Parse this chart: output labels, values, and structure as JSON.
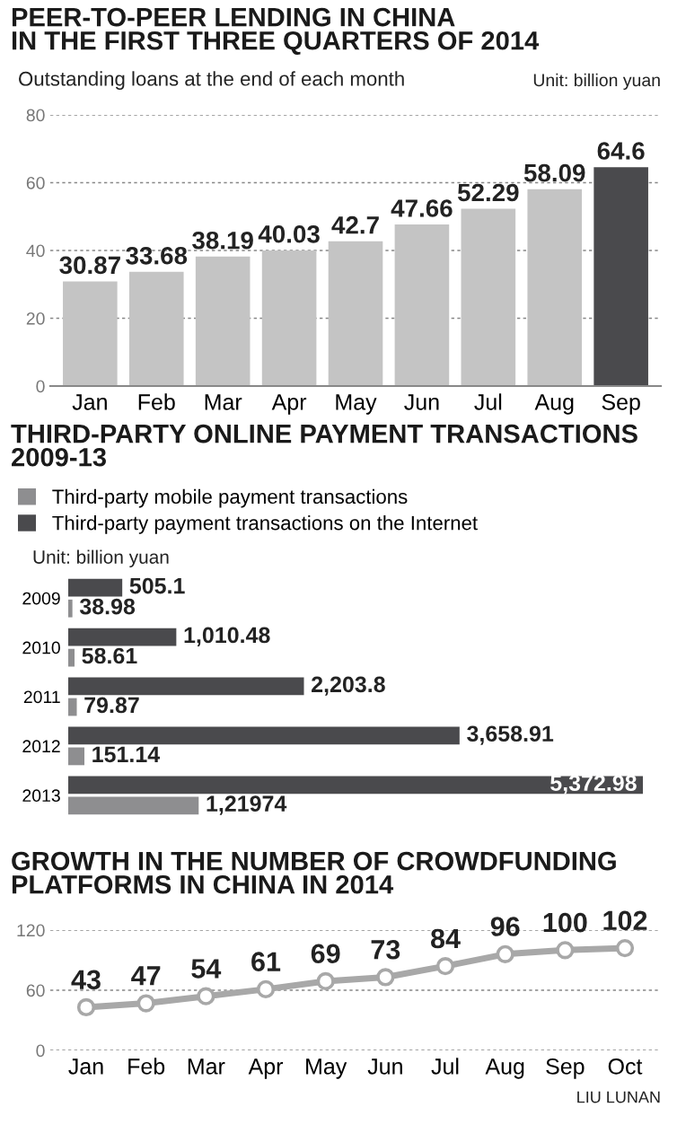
{
  "chart_data": [
    {
      "type": "bar",
      "title": "PEER-TO-PEER LENDING IN CHINA\nIN THE FIRST THREE QUARTERS OF 2014",
      "subtitle": "Outstanding loans at the end of each month",
      "annotations": [
        "Unit: billion yuan"
      ],
      "categories": [
        "Jan",
        "Feb",
        "Mar",
        "Apr",
        "May",
        "Jun",
        "Jul",
        "Aug",
        "Sep"
      ],
      "values": [
        30.87,
        33.68,
        38.19,
        40.03,
        42.7,
        47.66,
        52.29,
        58.09,
        64.6
      ],
      "colors": [
        "#c4c4c4",
        "#c4c4c4",
        "#c4c4c4",
        "#c4c4c4",
        "#c4c4c4",
        "#c4c4c4",
        "#c4c4c4",
        "#c4c4c4",
        "#4a4a4d"
      ],
      "ylim": [
        0,
        80
      ],
      "yticks": [
        0,
        20,
        40,
        60,
        80
      ],
      "grid": "y",
      "data_labels": true
    },
    {
      "type": "bar",
      "orientation": "horizontal",
      "title": "THIRD-PARTY ONLINE PAYMENT TRANSACTIONS\n2009-13",
      "annotations": [
        "Unit: billion yuan"
      ],
      "categories": [
        "2009",
        "2010",
        "2011",
        "2012",
        "2013"
      ],
      "legend": "top left",
      "series": [
        {
          "name": "Third-party mobile payment transactions",
          "color": "#8e8e90",
          "values": [
            38.98,
            58.61,
            79.87,
            151.14,
            1219.74
          ],
          "value_labels": [
            "38.98",
            "58.61",
            "79.87",
            "151.14",
            "1,21974"
          ]
        },
        {
          "name": "Third-party payment transactions on the Internet",
          "color": "#4a4a4d",
          "values": [
            505.1,
            1010.48,
            2203.8,
            3658.91,
            5372.98
          ],
          "value_labels": [
            "505.1",
            "1,010.48",
            "2,203.8",
            "3,658.91",
            "5,372.98"
          ]
        }
      ]
    },
    {
      "type": "line",
      "title": "GROWTH IN THE NUMBER OF CROWDFUNDING\nPLATFORMS IN CHINA IN 2014",
      "annotations": [
        "LIU LUNAN"
      ],
      "categories": [
        "Jan",
        "Feb",
        "Mar",
        "Apr",
        "May",
        "Jun",
        "Jul",
        "Aug",
        "Sep",
        "Oct"
      ],
      "values": [
        43,
        47,
        54,
        61,
        69,
        73,
        84,
        96,
        100,
        102
      ],
      "color": "#a8a8a8",
      "ylim": [
        0,
        120
      ],
      "yticks": [
        0,
        60,
        120
      ],
      "grid": "y",
      "marker": "circle",
      "data_labels": true
    }
  ]
}
